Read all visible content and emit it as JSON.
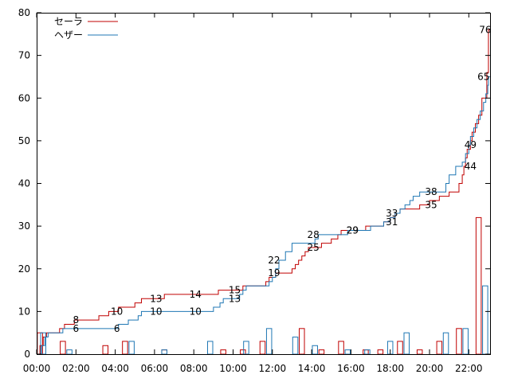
{
  "chart_data": {
    "type": "line",
    "title": "",
    "xlabel": "",
    "ylabel": "",
    "xlim": [
      0,
      1385
    ],
    "ylim": [
      0,
      80
    ],
    "grid": false,
    "legend_position": "top-left",
    "x_ticks": [
      {
        "value": 0,
        "label": "00:00"
      },
      {
        "value": 120,
        "label": "02:00"
      },
      {
        "value": 240,
        "label": "04:00"
      },
      {
        "value": 360,
        "label": "06:00"
      },
      {
        "value": 480,
        "label": "08:00"
      },
      {
        "value": 600,
        "label": "10:00"
      },
      {
        "value": 720,
        "label": "12:00"
      },
      {
        "value": 840,
        "label": "14:00"
      },
      {
        "value": 960,
        "label": "16:00"
      },
      {
        "value": 1080,
        "label": "18:00"
      },
      {
        "value": 1200,
        "label": "20:00"
      },
      {
        "value": 1320,
        "label": "22:00"
      }
    ],
    "y_ticks": [
      {
        "value": 0,
        "label": "0"
      },
      {
        "value": 10,
        "label": "10"
      },
      {
        "value": 20,
        "label": "20"
      },
      {
        "value": 30,
        "label": "30"
      },
      {
        "value": 40,
        "label": "40"
      },
      {
        "value": 50,
        "label": "50"
      },
      {
        "value": 60,
        "label": "60"
      },
      {
        "value": 70,
        "label": "70"
      },
      {
        "value": 80,
        "label": "80"
      }
    ],
    "series": [
      {
        "name": "セーラ",
        "color": "#c00000",
        "cumulative_steps": [
          [
            0,
            0
          ],
          [
            10,
            2
          ],
          [
            20,
            4
          ],
          [
            30,
            5
          ],
          [
            60,
            5
          ],
          [
            70,
            6
          ],
          [
            85,
            7
          ],
          [
            115,
            8
          ],
          [
            190,
            9
          ],
          [
            220,
            10
          ],
          [
            250,
            11
          ],
          [
            300,
            12
          ],
          [
            320,
            13
          ],
          [
            390,
            14
          ],
          [
            550,
            14
          ],
          [
            555,
            15
          ],
          [
            620,
            15
          ],
          [
            630,
            16
          ],
          [
            690,
            16
          ],
          [
            700,
            17
          ],
          [
            710,
            18
          ],
          [
            730,
            19
          ],
          [
            780,
            20
          ],
          [
            790,
            21
          ],
          [
            800,
            22
          ],
          [
            810,
            23
          ],
          [
            820,
            24
          ],
          [
            830,
            25
          ],
          [
            850,
            25
          ],
          [
            870,
            26
          ],
          [
            900,
            27
          ],
          [
            920,
            28
          ],
          [
            930,
            29
          ],
          [
            1005,
            30
          ],
          [
            1060,
            31
          ],
          [
            1080,
            32
          ],
          [
            1095,
            33
          ],
          [
            1110,
            34
          ],
          [
            1170,
            35
          ],
          [
            1200,
            36
          ],
          [
            1230,
            37
          ],
          [
            1260,
            38
          ],
          [
            1290,
            40
          ],
          [
            1300,
            42
          ],
          [
            1305,
            44
          ],
          [
            1310,
            46
          ],
          [
            1315,
            48
          ],
          [
            1325,
            50
          ],
          [
            1330,
            52
          ],
          [
            1340,
            54
          ],
          [
            1350,
            56
          ],
          [
            1360,
            60
          ],
          [
            1375,
            66
          ],
          [
            1380,
            76
          ],
          [
            1385,
            76
          ]
        ],
        "histogram": [
          {
            "x": 10,
            "v": 5
          },
          {
            "x": 80,
            "v": 3
          },
          {
            "x": 210,
            "v": 2
          },
          {
            "x": 270,
            "v": 3
          },
          {
            "x": 390,
            "v": 1
          },
          {
            "x": 570,
            "v": 1
          },
          {
            "x": 630,
            "v": 1
          },
          {
            "x": 690,
            "v": 3
          },
          {
            "x": 810,
            "v": 6
          },
          {
            "x": 870,
            "v": 1
          },
          {
            "x": 930,
            "v": 3
          },
          {
            "x": 1005,
            "v": 1
          },
          {
            "x": 1050,
            "v": 1
          },
          {
            "x": 1110,
            "v": 3
          },
          {
            "x": 1170,
            "v": 1
          },
          {
            "x": 1230,
            "v": 3
          },
          {
            "x": 1290,
            "v": 6
          },
          {
            "x": 1350,
            "v": 32
          }
        ],
        "labels": [
          {
            "x": 120,
            "y": 8,
            "text": "8"
          },
          {
            "x": 245,
            "y": 10,
            "text": "10"
          },
          {
            "x": 365,
            "y": 13,
            "text": "13"
          },
          {
            "x": 485,
            "y": 14,
            "text": "14"
          },
          {
            "x": 605,
            "y": 15,
            "text": "15"
          },
          {
            "x": 725,
            "y": 19,
            "text": "19"
          },
          {
            "x": 845,
            "y": 25,
            "text": "25"
          },
          {
            "x": 965,
            "y": 29,
            "text": "29"
          },
          {
            "x": 1085,
            "y": 31,
            "text": "31"
          },
          {
            "x": 1205,
            "y": 35,
            "text": "35"
          },
          {
            "x": 1325,
            "y": 44,
            "text": "44"
          },
          {
            "x": 1370,
            "y": 76,
            "text": "76"
          }
        ]
      },
      {
        "name": "ヘザー",
        "color": "#1f77b4",
        "cumulative_steps": [
          [
            0,
            0
          ],
          [
            15,
            2
          ],
          [
            25,
            4
          ],
          [
            35,
            5
          ],
          [
            80,
            6
          ],
          [
            240,
            6
          ],
          [
            250,
            7
          ],
          [
            280,
            8
          ],
          [
            310,
            9
          ],
          [
            320,
            10
          ],
          [
            530,
            10
          ],
          [
            540,
            11
          ],
          [
            560,
            12
          ],
          [
            570,
            13
          ],
          [
            620,
            14
          ],
          [
            630,
            15
          ],
          [
            640,
            16
          ],
          [
            700,
            16
          ],
          [
            710,
            17
          ],
          [
            720,
            18
          ],
          [
            730,
            20
          ],
          [
            740,
            22
          ],
          [
            760,
            24
          ],
          [
            780,
            26
          ],
          [
            840,
            26
          ],
          [
            850,
            27
          ],
          [
            860,
            28
          ],
          [
            940,
            28
          ],
          [
            950,
            29
          ],
          [
            1010,
            29
          ],
          [
            1020,
            30
          ],
          [
            1060,
            31
          ],
          [
            1080,
            32
          ],
          [
            1095,
            33
          ],
          [
            1110,
            34
          ],
          [
            1125,
            35
          ],
          [
            1140,
            36
          ],
          [
            1150,
            37
          ],
          [
            1170,
            38
          ],
          [
            1230,
            38
          ],
          [
            1250,
            40
          ],
          [
            1260,
            42
          ],
          [
            1280,
            44
          ],
          [
            1300,
            45
          ],
          [
            1310,
            47
          ],
          [
            1320,
            49
          ],
          [
            1325,
            51
          ],
          [
            1335,
            53
          ],
          [
            1345,
            55
          ],
          [
            1355,
            57
          ],
          [
            1365,
            59
          ],
          [
            1372,
            61
          ],
          [
            1378,
            63
          ],
          [
            1380,
            65
          ],
          [
            1385,
            65
          ]
        ],
        "histogram": [
          {
            "x": 20,
            "v": 5
          },
          {
            "x": 100,
            "v": 1
          },
          {
            "x": 290,
            "v": 3
          },
          {
            "x": 390,
            "v": 1
          },
          {
            "x": 530,
            "v": 3
          },
          {
            "x": 640,
            "v": 3
          },
          {
            "x": 710,
            "v": 6
          },
          {
            "x": 790,
            "v": 4
          },
          {
            "x": 850,
            "v": 2
          },
          {
            "x": 950,
            "v": 1
          },
          {
            "x": 1010,
            "v": 1
          },
          {
            "x": 1080,
            "v": 3
          },
          {
            "x": 1130,
            "v": 5
          },
          {
            "x": 1250,
            "v": 5
          },
          {
            "x": 1310,
            "v": 6
          },
          {
            "x": 1370,
            "v": 16
          }
        ],
        "labels": [
          {
            "x": 120,
            "y": 6,
            "text": "6"
          },
          {
            "x": 245,
            "y": 6,
            "text": "6"
          },
          {
            "x": 365,
            "y": 10,
            "text": "10"
          },
          {
            "x": 485,
            "y": 10,
            "text": "10"
          },
          {
            "x": 605,
            "y": 13,
            "text": "13"
          },
          {
            "x": 725,
            "y": 22,
            "text": "22"
          },
          {
            "x": 845,
            "y": 28,
            "text": "28"
          },
          {
            "x": 965,
            "y": 29,
            "text": "29"
          },
          {
            "x": 1085,
            "y": 33,
            "text": "33"
          },
          {
            "x": 1205,
            "y": 38,
            "text": "38"
          },
          {
            "x": 1325,
            "y": 49,
            "text": "49"
          },
          {
            "x": 1365,
            "y": 65,
            "text": "65"
          }
        ]
      }
    ]
  }
}
